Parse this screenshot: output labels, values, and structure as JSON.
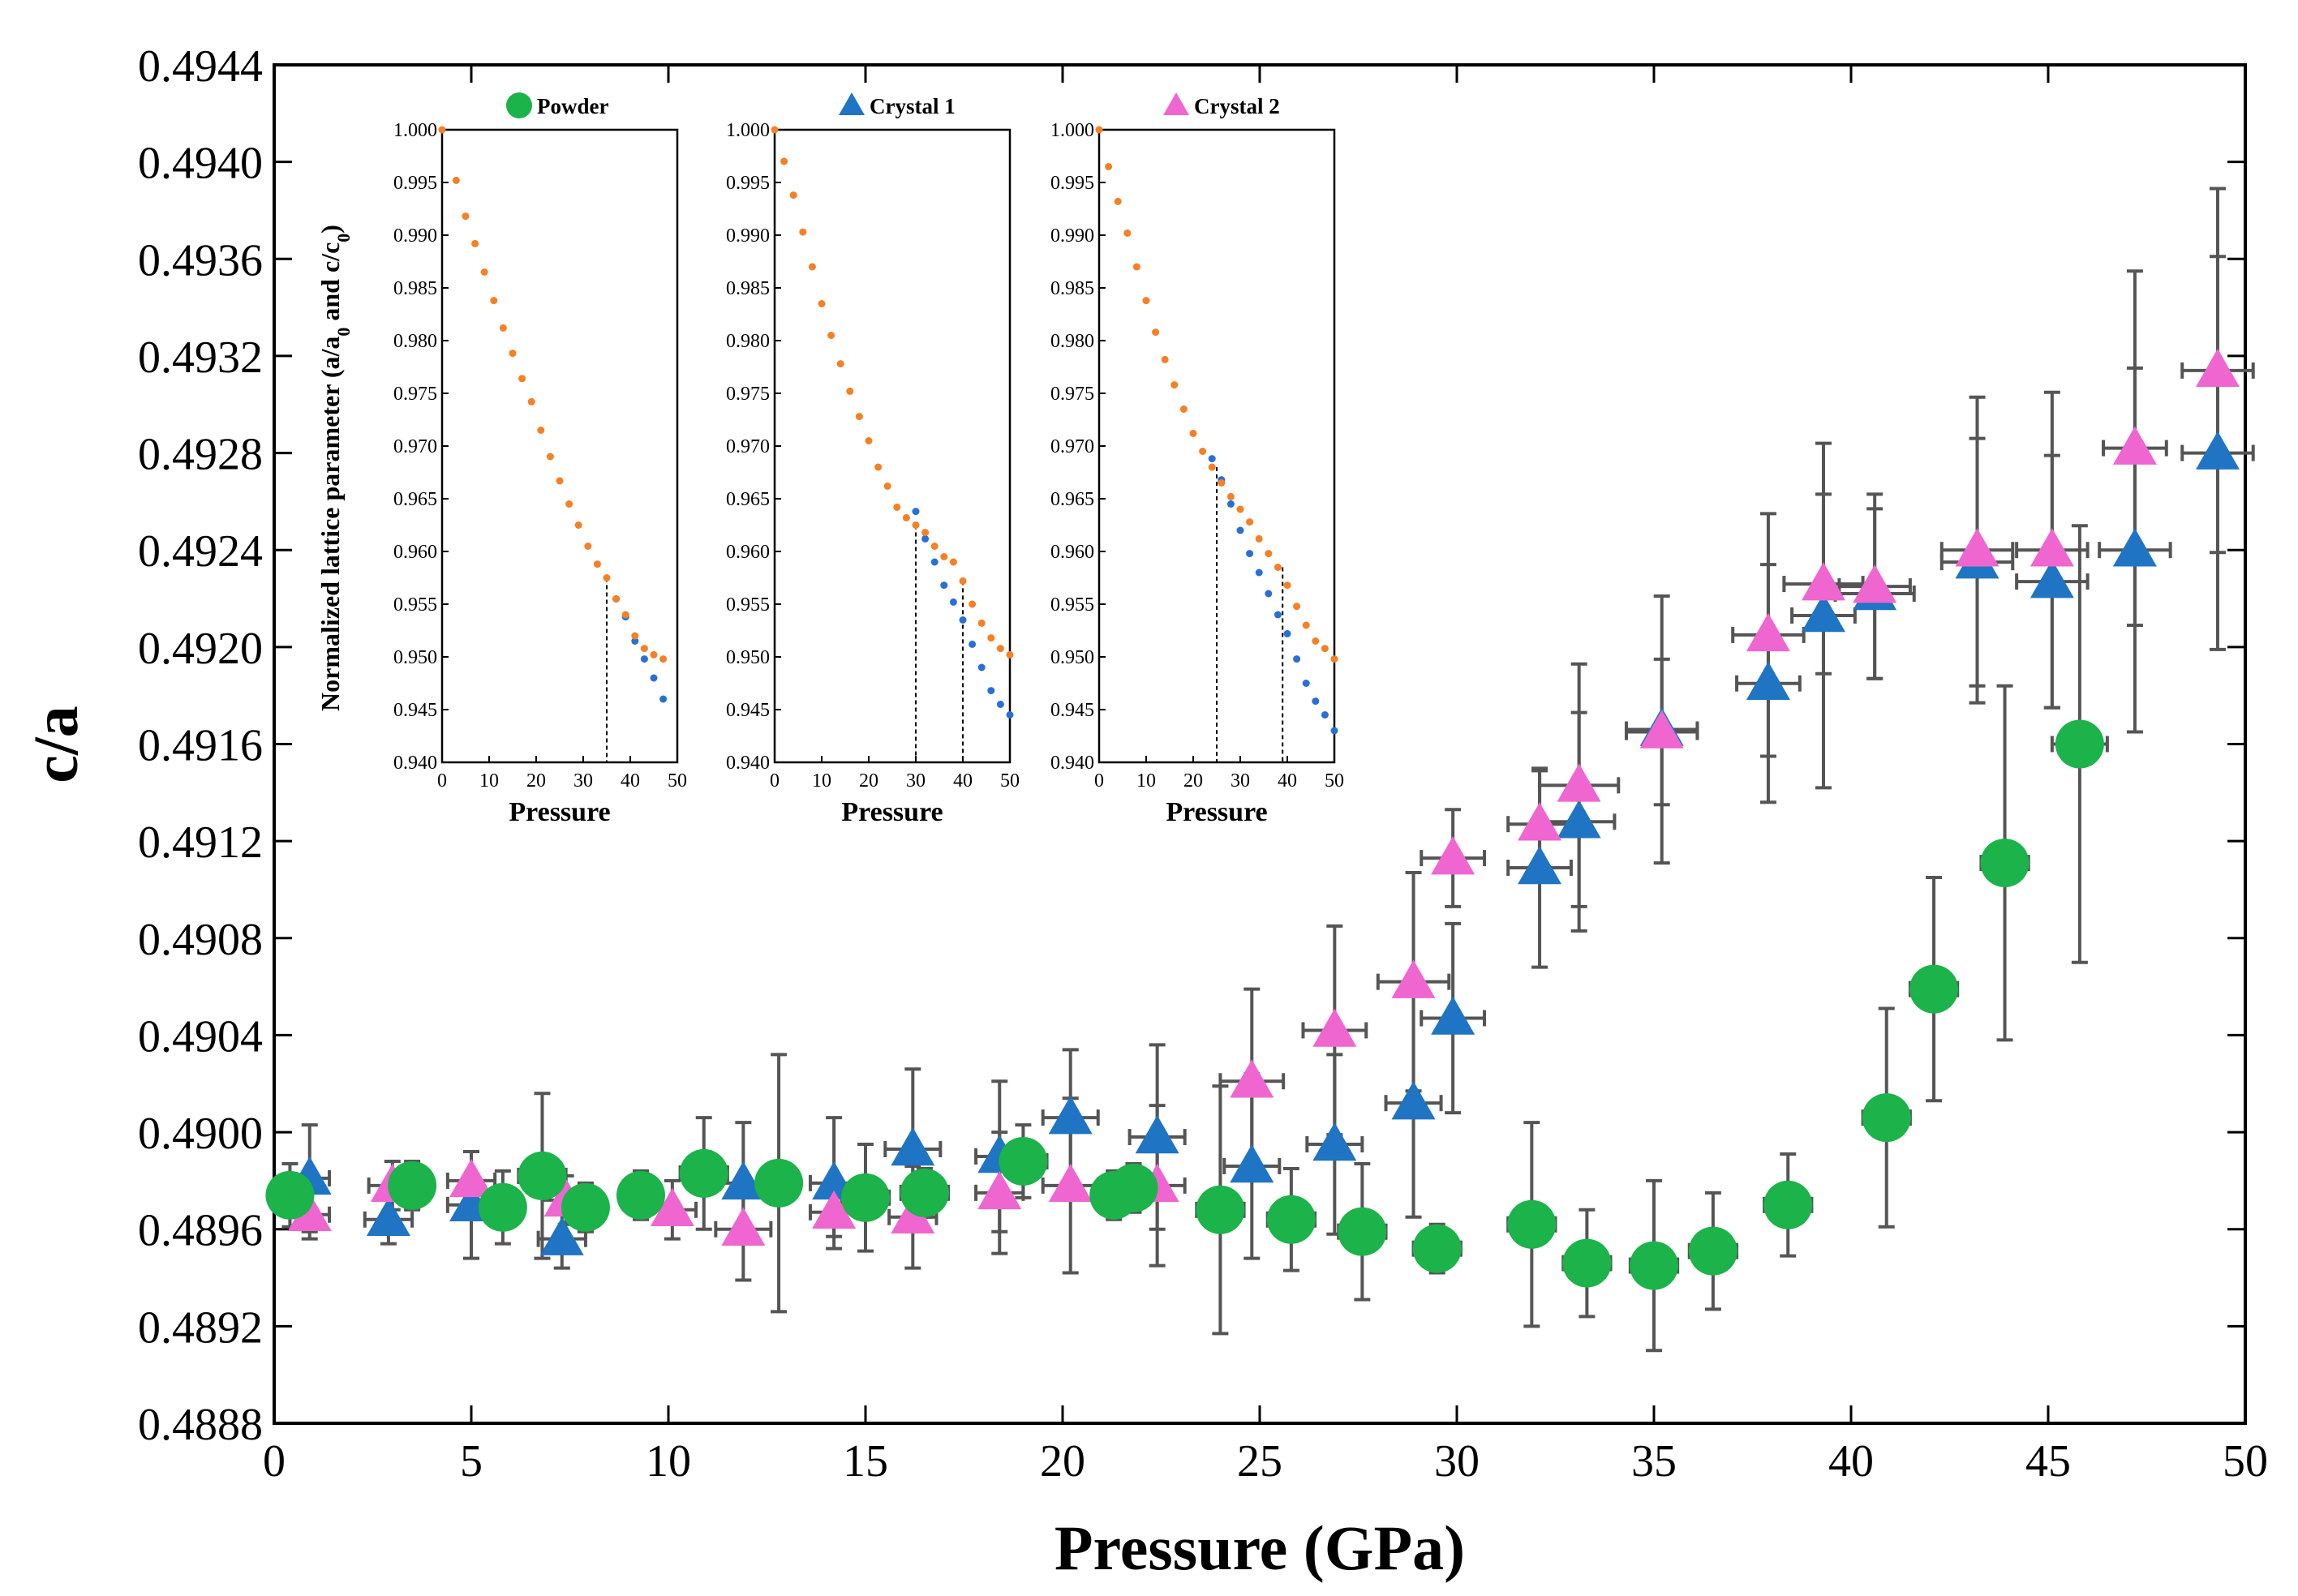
{
  "chart_data": {
    "type": "scatter",
    "xlabel": "Pressure (GPa)",
    "ylabel": "c/a",
    "xlim": [
      0,
      50
    ],
    "ylim": [
      0.4888,
      0.4944
    ],
    "x_ticks": [
      "0",
      "5",
      "10",
      "15",
      "20",
      "25",
      "30",
      "35",
      "40",
      "45",
      "50"
    ],
    "y_ticks": [
      "0.4888",
      "0.4892",
      "0.4896",
      "0.4900",
      "0.4904",
      "0.4908",
      "0.4912",
      "0.4916",
      "0.4920",
      "0.4924",
      "0.4928",
      "0.4932",
      "0.4936",
      "0.4940",
      "0.4944"
    ],
    "colors": {
      "powder": "#1bb34a",
      "crystal1": "#1f74c4",
      "crystal2": "#ef66d0",
      "errorbar": "#555555",
      "inset_a": "#f58025",
      "inset_c": "#2a6fd6"
    },
    "series": [
      {
        "name": "Powder",
        "marker": "circle",
        "points": [
          {
            "x": 0.4,
            "y": 0.48974,
            "xerr": 0.4,
            "yerr": 0.00013
          },
          {
            "x": 3.5,
            "y": 0.48978,
            "xerr": 0.5,
            "yerr": 0.0001
          },
          {
            "x": 5.8,
            "y": 0.48969,
            "xerr": 0.5,
            "yerr": 0.00015
          },
          {
            "x": 6.8,
            "y": 0.48982,
            "xerr": 0.6,
            "yerr": 0.00034
          },
          {
            "x": 7.9,
            "y": 0.48969,
            "xerr": 0.5,
            "yerr": 0.0001
          },
          {
            "x": 9.3,
            "y": 0.48974,
            "xerr": 0.5,
            "yerr": 0.0001
          },
          {
            "x": 10.9,
            "y": 0.48983,
            "xerr": 0.6,
            "yerr": 0.00023
          },
          {
            "x": 12.8,
            "y": 0.48979,
            "xerr": 0.5,
            "yerr": 0.00053
          },
          {
            "x": 15.0,
            "y": 0.48973,
            "xerr": 0.6,
            "yerr": 0.00022
          },
          {
            "x": 16.5,
            "y": 0.48975,
            "xerr": 0.6,
            "yerr": 0.0001
          },
          {
            "x": 19.0,
            "y": 0.48988,
            "xerr": 0.6,
            "yerr": 0.00015
          },
          {
            "x": 21.3,
            "y": 0.48974,
            "xerr": 0.5,
            "yerr": 0.0001
          },
          {
            "x": 21.8,
            "y": 0.48977,
            "xerr": 0.5,
            "yerr": 0.0001
          },
          {
            "x": 24.0,
            "y": 0.48968,
            "xerr": 0.6,
            "yerr": 0.00051
          },
          {
            "x": 25.8,
            "y": 0.48964,
            "xerr": 0.6,
            "yerr": 0.00021
          },
          {
            "x": 27.6,
            "y": 0.48959,
            "xerr": 0.6,
            "yerr": 0.00028
          },
          {
            "x": 29.5,
            "y": 0.48952,
            "xerr": 0.6,
            "yerr": 0.0001
          },
          {
            "x": 31.9,
            "y": 0.48962,
            "xerr": 0.6,
            "yerr": 0.00042
          },
          {
            "x": 33.3,
            "y": 0.48946,
            "xerr": 0.6,
            "yerr": 0.00022
          },
          {
            "x": 35.0,
            "y": 0.48945,
            "xerr": 0.6,
            "yerr": 0.00035
          },
          {
            "x": 36.5,
            "y": 0.48951,
            "xerr": 0.6,
            "yerr": 0.00024
          },
          {
            "x": 38.4,
            "y": 0.4897,
            "xerr": 0.6,
            "yerr": 0.00021
          },
          {
            "x": 40.9,
            "y": 0.49006,
            "xerr": 0.6,
            "yerr": 0.00045
          },
          {
            "x": 42.1,
            "y": 0.49059,
            "xerr": 0.6,
            "yerr": 0.00046
          },
          {
            "x": 43.9,
            "y": 0.49111,
            "xerr": 0.6,
            "yerr": 0.00073
          },
          {
            "x": 45.8,
            "y": 0.4916,
            "xerr": 0.7,
            "yerr": 0.0009
          }
        ]
      },
      {
        "name": "Crystal 1",
        "marker": "triangle",
        "points": [
          {
            "x": 0.9,
            "y": 0.48981,
            "xerr": 0.5,
            "yerr": 0.00022
          },
          {
            "x": 2.9,
            "y": 0.48964,
            "xerr": 0.6,
            "yerr": 0.0001
          },
          {
            "x": 5.0,
            "y": 0.4897,
            "xerr": 0.6,
            "yerr": 0.00022
          },
          {
            "x": 7.3,
            "y": 0.48956,
            "xerr": 0.6,
            "yerr": 0.00012
          },
          {
            "x": 11.9,
            "y": 0.48979,
            "xerr": 0.6,
            "yerr": 0.00025
          },
          {
            "x": 14.2,
            "y": 0.48979,
            "xerr": 0.6,
            "yerr": 0.00027
          },
          {
            "x": 16.2,
            "y": 0.48993,
            "xerr": 0.7,
            "yerr": 0.00033
          },
          {
            "x": 18.4,
            "y": 0.4899,
            "xerr": 0.6,
            "yerr": 0.00031
          },
          {
            "x": 20.2,
            "y": 0.49006,
            "xerr": 0.7,
            "yerr": 0.00028
          },
          {
            "x": 22.4,
            "y": 0.48998,
            "xerr": 0.7,
            "yerr": 0.00038
          },
          {
            "x": 24.8,
            "y": 0.48986,
            "xerr": 0.7,
            "yerr": 0.00038
          },
          {
            "x": 26.9,
            "y": 0.48995,
            "xerr": 0.7,
            "yerr": 0.00037
          },
          {
            "x": 28.9,
            "y": 0.49012,
            "xerr": 0.7,
            "yerr": 0.00047
          },
          {
            "x": 29.9,
            "y": 0.49047,
            "xerr": 0.8,
            "yerr": 0.00039
          },
          {
            "x": 32.1,
            "y": 0.49109,
            "xerr": 0.8,
            "yerr": 0.00041
          },
          {
            "x": 33.1,
            "y": 0.49128,
            "xerr": 0.9,
            "yerr": 0.00045
          },
          {
            "x": 35.2,
            "y": 0.49166,
            "xerr": 0.9,
            "yerr": 0.00055
          },
          {
            "x": 37.9,
            "y": 0.49185,
            "xerr": 0.8,
            "yerr": 0.00049
          },
          {
            "x": 39.3,
            "y": 0.49213,
            "xerr": 0.8,
            "yerr": 0.00071
          },
          {
            "x": 40.6,
            "y": 0.49222,
            "xerr": 1.0,
            "yerr": 0.00035
          },
          {
            "x": 43.2,
            "y": 0.49235,
            "xerr": 0.9,
            "yerr": 0.00051
          },
          {
            "x": 45.1,
            "y": 0.49227,
            "xerr": 0.9,
            "yerr": 0.00052
          },
          {
            "x": 47.2,
            "y": 0.4924,
            "xerr": 0.9,
            "yerr": 0.00075
          },
          {
            "x": 49.3,
            "y": 0.4928,
            "xerr": 0.9,
            "yerr": 0.00081
          }
        ]
      },
      {
        "name": "Crystal 2",
        "marker": "triangle",
        "points": [
          {
            "x": 0.9,
            "y": 0.48966,
            "xerr": 0.5,
            "yerr": 0.0001
          },
          {
            "x": 3.0,
            "y": 0.48978,
            "xerr": 0.6,
            "yerr": 0.0001
          },
          {
            "x": 5.0,
            "y": 0.4898,
            "xerr": 0.6,
            "yerr": 0.00012
          },
          {
            "x": 7.4,
            "y": 0.48972,
            "xerr": 0.6,
            "yerr": 0.0001
          },
          {
            "x": 10.1,
            "y": 0.48968,
            "xerr": 0.6,
            "yerr": 0.00012
          },
          {
            "x": 11.9,
            "y": 0.4896,
            "xerr": 0.7,
            "yerr": 0.00021
          },
          {
            "x": 14.2,
            "y": 0.48967,
            "xerr": 0.6,
            "yerr": 0.0001
          },
          {
            "x": 16.2,
            "y": 0.48965,
            "xerr": 0.6,
            "yerr": 0.00021
          },
          {
            "x": 18.4,
            "y": 0.48975,
            "xerr": 0.6,
            "yerr": 0.00025
          },
          {
            "x": 20.2,
            "y": 0.48978,
            "xerr": 0.7,
            "yerr": 0.00036
          },
          {
            "x": 22.4,
            "y": 0.48978,
            "xerr": 0.7,
            "yerr": 0.00033
          },
          {
            "x": 24.8,
            "y": 0.49021,
            "xerr": 0.8,
            "yerr": 0.00038
          },
          {
            "x": 26.9,
            "y": 0.49042,
            "xerr": 0.8,
            "yerr": 0.00043
          },
          {
            "x": 28.9,
            "y": 0.49062,
            "xerr": 0.9,
            "yerr": 0.00045
          },
          {
            "x": 29.9,
            "y": 0.49113,
            "xerr": 0.8,
            "yerr": 0.0002
          },
          {
            "x": 32.1,
            "y": 0.49127,
            "xerr": 0.8,
            "yerr": 0.00022
          },
          {
            "x": 33.1,
            "y": 0.49143,
            "xerr": 1.0,
            "yerr": 0.0005
          },
          {
            "x": 35.2,
            "y": 0.49165,
            "xerr": 0.9,
            "yerr": 0.0003
          },
          {
            "x": 37.9,
            "y": 0.49205,
            "xerr": 0.9,
            "yerr": 0.0005
          },
          {
            "x": 39.3,
            "y": 0.49226,
            "xerr": 1.0,
            "yerr": 0.00037
          },
          {
            "x": 40.6,
            "y": 0.49225,
            "xerr": 0.9,
            "yerr": 0.00038
          },
          {
            "x": 43.2,
            "y": 0.4924,
            "xerr": 0.9,
            "yerr": 0.00063
          },
          {
            "x": 45.1,
            "y": 0.4924,
            "xerr": 0.9,
            "yerr": 0.00065
          },
          {
            "x": 47.2,
            "y": 0.49282,
            "xerr": 0.8,
            "yerr": 0.00073
          },
          {
            "x": 49.3,
            "y": 0.49314,
            "xerr": 0.9,
            "yerr": 0.00075
          }
        ]
      }
    ],
    "inset": {
      "type": "scatter",
      "ylabel_prefix": "Normalized lattice parameter (a/a",
      "ylabel_sub0": "0",
      "ylabel_mid": " and c/c",
      "ylabel_sub1": "0",
      "ylabel_suffix": ")",
      "xlabel": "Pressure",
      "xlim": [
        0,
        50
      ],
      "ylim": [
        0.94,
        1.0
      ],
      "x_ticks": [
        "0",
        "10",
        "20",
        "30",
        "40",
        "50"
      ],
      "y_ticks": [
        "1.000",
        "0.995",
        "0.990",
        "0.985",
        "0.980",
        "0.975",
        "0.970",
        "0.965",
        "0.960",
        "0.955",
        "0.950",
        "0.945",
        "0.940"
      ],
      "panels": [
        {
          "legend": "Powder",
          "legend_marker": "circle",
          "legend_color_key": "powder",
          "transition": 35,
          "a_over_a0": [
            [
              0,
              1.0
            ],
            [
              3,
              0.9952
            ],
            [
              5,
              0.9918
            ],
            [
              7,
              0.9892
            ],
            [
              9,
              0.9865
            ],
            [
              11,
              0.9838
            ],
            [
              13,
              0.9812
            ],
            [
              15,
              0.9788
            ],
            [
              17,
              0.9764
            ],
            [
              19,
              0.9742
            ],
            [
              21,
              0.9715
            ],
            [
              23,
              0.969
            ],
            [
              25,
              0.9667
            ],
            [
              27,
              0.9645
            ],
            [
              29,
              0.9625
            ],
            [
              31,
              0.9605
            ],
            [
              33,
              0.9588
            ],
            [
              35,
              0.9575
            ],
            [
              37,
              0.9555
            ],
            [
              39,
              0.954
            ],
            [
              41,
              0.952
            ],
            [
              43,
              0.9508
            ],
            [
              45,
              0.9502
            ],
            [
              47,
              0.9498
            ]
          ],
          "c_over_c0": [
            [
              37,
              0.9555
            ],
            [
              39,
              0.9538
            ],
            [
              41,
              0.9515
            ],
            [
              43,
              0.9498
            ],
            [
              45,
              0.948
            ],
            [
              47,
              0.946
            ]
          ]
        },
        {
          "legend": "Crystal 1",
          "legend_marker": "triangle",
          "legend_color_key": "crystal1",
          "transition": 30,
          "transition2": 40,
          "a_over_a0": [
            [
              0,
              1.0
            ],
            [
              2,
              0.997
            ],
            [
              4,
              0.9938
            ],
            [
              6,
              0.9903
            ],
            [
              8,
              0.987
            ],
            [
              10,
              0.9835
            ],
            [
              12,
              0.9805
            ],
            [
              14,
              0.9778
            ],
            [
              16,
              0.9752
            ],
            [
              18,
              0.9728
            ],
            [
              20,
              0.9705
            ],
            [
              22,
              0.968
            ],
            [
              24,
              0.9662
            ],
            [
              26,
              0.9642
            ],
            [
              28,
              0.9632
            ],
            [
              30,
              0.9625
            ],
            [
              32,
              0.9618
            ],
            [
              34,
              0.9605
            ],
            [
              36,
              0.9595
            ],
            [
              38,
              0.959
            ],
            [
              40,
              0.9572
            ],
            [
              42,
              0.955
            ],
            [
              44,
              0.9532
            ],
            [
              46,
              0.9518
            ],
            [
              48,
              0.9508
            ],
            [
              50,
              0.9502
            ]
          ],
          "c_over_c0": [
            [
              30,
              0.9638
            ],
            [
              32,
              0.9612
            ],
            [
              34,
              0.959
            ],
            [
              36,
              0.9568
            ],
            [
              38,
              0.9552
            ],
            [
              40,
              0.9535
            ],
            [
              42,
              0.9512
            ],
            [
              44,
              0.949
            ],
            [
              46,
              0.9468
            ],
            [
              48,
              0.9455
            ],
            [
              50,
              0.9445
            ]
          ]
        },
        {
          "legend": "Crystal 2",
          "legend_marker": "triangle",
          "legend_color_key": "crystal2",
          "transition": 25,
          "transition2": 39,
          "a_over_a0": [
            [
              0,
              1.0
            ],
            [
              2,
              0.9965
            ],
            [
              4,
              0.9932
            ],
            [
              6,
              0.9902
            ],
            [
              8,
              0.987
            ],
            [
              10,
              0.9838
            ],
            [
              12,
              0.9808
            ],
            [
              14,
              0.9782
            ],
            [
              16,
              0.9758
            ],
            [
              18,
              0.9735
            ],
            [
              20,
              0.9712
            ],
            [
              22,
              0.9695
            ],
            [
              24,
              0.968
            ],
            [
              26,
              0.9665
            ],
            [
              28,
              0.9652
            ],
            [
              30,
              0.964
            ],
            [
              32,
              0.9628
            ],
            [
              34,
              0.9612
            ],
            [
              36,
              0.9598
            ],
            [
              38,
              0.9585
            ],
            [
              40,
              0.9568
            ],
            [
              42,
              0.9548
            ],
            [
              44,
              0.953
            ],
            [
              46,
              0.9515
            ],
            [
              48,
              0.9508
            ],
            [
              50,
              0.9498
            ]
          ],
          "c_over_c0": [
            [
              24,
              0.9688
            ],
            [
              26,
              0.9668
            ],
            [
              28,
              0.9645
            ],
            [
              30,
              0.962
            ],
            [
              32,
              0.9598
            ],
            [
              34,
              0.958
            ],
            [
              36,
              0.956
            ],
            [
              38,
              0.954
            ],
            [
              40,
              0.9522
            ],
            [
              42,
              0.9498
            ],
            [
              44,
              0.9475
            ],
            [
              46,
              0.9458
            ],
            [
              48,
              0.9445
            ],
            [
              50,
              0.943
            ]
          ]
        }
      ]
    }
  }
}
